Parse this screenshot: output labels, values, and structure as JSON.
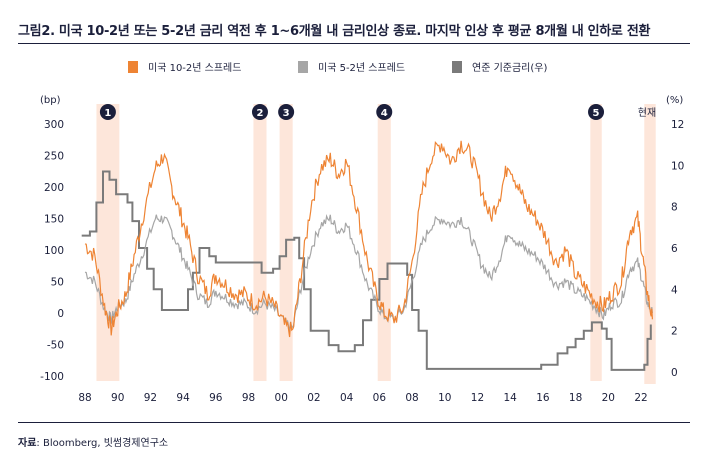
{
  "title": "그림2.  미국 10-2년 또는 5-2년 금리 역전 후 1~6개월 내 금리인상 종료. 마지막 인상 후 평균 8개월 내 인하로 전환",
  "source_label": "자료",
  "source_text": ": Bloomberg, 빗썸경제연구소",
  "chart_data": {
    "type": "line",
    "title": "",
    "left_unit": "(bp)",
    "right_unit": "(%)",
    "ylim": [
      -100,
      300
    ],
    "yticks": [
      -100,
      -50,
      0,
      50,
      100,
      150,
      200,
      250,
      300
    ],
    "y2lim": [
      0,
      12
    ],
    "y2ticks": [
      0,
      2,
      4,
      6,
      8,
      10,
      12
    ],
    "xlim": [
      1987.8,
      2022.9
    ],
    "xticks": [
      "88",
      "90",
      "92",
      "94",
      "96",
      "98",
      "00",
      "02",
      "04",
      "06",
      "08",
      "10",
      "12",
      "14",
      "16",
      "18",
      "20",
      "22"
    ],
    "legend_position": "top",
    "series": [
      {
        "name": "미국 10-2년 스프레드",
        "color": "#ee8434",
        "axis": "left",
        "x": [
          1988,
          1988.6,
          1989.2,
          1989.6,
          1990,
          1990.5,
          1991,
          1991.6,
          1992.3,
          1992.8,
          1993.3,
          1993.8,
          1994.3,
          1994.9,
          1995.5,
          1996,
          1996.6,
          1997.2,
          1997.8,
          1998.4,
          1999,
          1999.6,
          2000.2,
          2000.7,
          2001.2,
          2001.8,
          2002.4,
          2003,
          2003.5,
          2004,
          2004.6,
          2005.2,
          2005.8,
          2006.3,
          2006.9,
          2007.5,
          2008,
          2008.6,
          2009.2,
          2009.8,
          2010.4,
          2011,
          2011.6,
          2012.2,
          2012.8,
          2013.4,
          2013.9,
          2014.5,
          2015,
          2015.6,
          2016.2,
          2016.8,
          2017.4,
          2018,
          2018.6,
          2019.2,
          2019.7,
          2020.2,
          2020.8,
          2021.3,
          2021.8,
          2022.1,
          2022.4,
          2022.7
        ],
        "values": [
          110,
          90,
          10,
          -25,
          5,
          30,
          90,
          160,
          230,
          250,
          200,
          160,
          120,
          60,
          30,
          60,
          45,
          30,
          30,
          15,
          25,
          10,
          -20,
          -30,
          60,
          170,
          230,
          245,
          220,
          240,
          170,
          90,
          30,
          0,
          -10,
          10,
          80,
          190,
          250,
          270,
          240,
          270,
          250,
          200,
          150,
          190,
          240,
          200,
          170,
          150,
          120,
          80,
          100,
          60,
          40,
          20,
          10,
          30,
          50,
          130,
          150,
          90,
          30,
          -10
        ]
      },
      {
        "name": "미국 5-2년 스프레드",
        "color": "#a6a6a6",
        "axis": "left",
        "x": [
          1988,
          1988.6,
          1989.2,
          1989.6,
          1990,
          1990.5,
          1991,
          1991.6,
          1992.3,
          1992.8,
          1993.3,
          1993.8,
          1994.3,
          1994.9,
          1995.5,
          1996,
          1996.6,
          1997.2,
          1997.8,
          1998.4,
          1999,
          1999.6,
          2000.2,
          2000.7,
          2001.2,
          2001.8,
          2002.4,
          2003,
          2003.5,
          2004,
          2004.6,
          2005.2,
          2005.8,
          2006.3,
          2006.9,
          2007.5,
          2008,
          2008.6,
          2009.2,
          2009.8,
          2010.4,
          2011,
          2011.6,
          2012.2,
          2012.8,
          2013.4,
          2013.9,
          2014.5,
          2015,
          2015.6,
          2016.2,
          2016.8,
          2017.4,
          2018,
          2018.6,
          2019.2,
          2019.7,
          2020.2,
          2020.8,
          2021.3,
          2021.8,
          2022.1,
          2022.4,
          2022.7
        ],
        "values": [
          65,
          50,
          5,
          -10,
          10,
          20,
          60,
          100,
          150,
          150,
          130,
          100,
          70,
          30,
          15,
          35,
          25,
          15,
          15,
          5,
          15,
          5,
          -15,
          -25,
          40,
          100,
          140,
          150,
          130,
          140,
          100,
          50,
          15,
          -5,
          -10,
          5,
          50,
          110,
          140,
          150,
          140,
          150,
          120,
          80,
          55,
          90,
          130,
          110,
          100,
          90,
          70,
          45,
          50,
          35,
          25,
          10,
          -5,
          15,
          20,
          70,
          80,
          50,
          15,
          0
        ]
      },
      {
        "name": "연준 기준금리(우)",
        "color": "#7a7a7a",
        "axis": "right",
        "step": true,
        "x": [
          1987.8,
          1988.3,
          1988.7,
          1989.1,
          1989.5,
          1989.9,
          1990.6,
          1990.9,
          1991.3,
          1991.8,
          1992.2,
          1992.7,
          1994.0,
          1994.3,
          1994.6,
          1995.0,
          1995.6,
          1996.0,
          1998.8,
          1999.5,
          1999.9,
          2000.3,
          2000.8,
          2001.1,
          2001.4,
          2001.8,
          2002.9,
          2003.5,
          2004.5,
          2005.0,
          2005.5,
          2006.0,
          2006.5,
          2007.7,
          2008.0,
          2008.4,
          2008.9,
          2015.9,
          2016.9,
          2017.5,
          2018.0,
          2018.5,
          2019.0,
          2019.6,
          2019.9,
          2020.2,
          2022.2,
          2022.4,
          2022.6
        ],
        "values": [
          6.6,
          6.8,
          8.2,
          9.7,
          9.3,
          8.6,
          8.2,
          7.3,
          6.0,
          5.0,
          4.0,
          3.0,
          3.0,
          4.0,
          4.8,
          6.0,
          5.6,
          5.3,
          4.8,
          5.0,
          5.6,
          6.4,
          6.5,
          5.5,
          4.0,
          2.0,
          1.3,
          1.0,
          1.3,
          2.5,
          3.5,
          4.5,
          5.25,
          4.7,
          3.0,
          2.0,
          0.15,
          0.35,
          0.9,
          1.2,
          1.6,
          2.0,
          2.4,
          2.1,
          1.6,
          0.1,
          0.35,
          1.6,
          2.3
        ]
      }
    ],
    "shaded_periods": [
      {
        "label": "1",
        "start": 1988.7,
        "end": 1990.1
      },
      {
        "label": "2",
        "start": 1998.3,
        "end": 1999.1
      },
      {
        "label": "3",
        "start": 1999.9,
        "end": 2000.7
      },
      {
        "label": "4",
        "start": 2005.9,
        "end": 2006.7
      },
      {
        "label": "5",
        "start": 2018.9,
        "end": 2019.6
      },
      {
        "label": "현재",
        "start": 2022.2,
        "end": 2022.9
      }
    ],
    "shade_color": "#fde6da"
  }
}
